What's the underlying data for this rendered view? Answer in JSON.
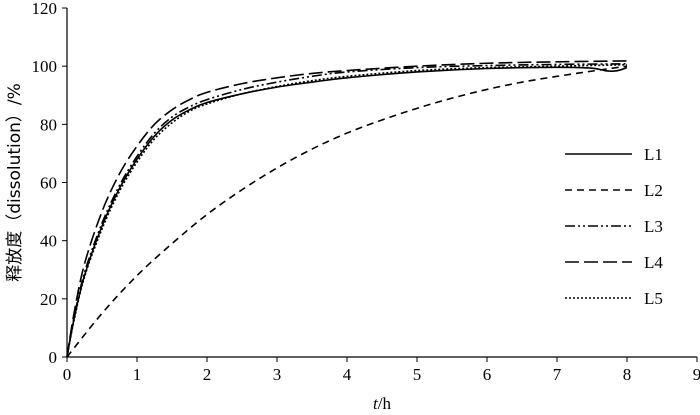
{
  "chart_data": {
    "type": "line",
    "title": "",
    "xlabel": {
      "italic": "t",
      "rest": "/h"
    },
    "ylabel": "释放度（dissolution）/%",
    "xlim": [
      0,
      9
    ],
    "ylim": [
      0,
      120
    ],
    "xticks": [
      0,
      1,
      2,
      3,
      4,
      5,
      6,
      7,
      8,
      9
    ],
    "yticks": [
      0,
      20,
      40,
      60,
      80,
      100,
      120
    ],
    "grid": false,
    "legend_position": "right",
    "series": [
      {
        "name": "L1",
        "style": "solid",
        "x": [
          0,
          0.1,
          0.25,
          0.5,
          0.75,
          1,
          1.25,
          1.5,
          1.75,
          2,
          2.5,
          3,
          3.5,
          4,
          5,
          6,
          7,
          7.5,
          7.7,
          7.85,
          8
        ],
        "y": [
          0,
          13,
          28,
          45,
          58,
          68,
          76,
          81.5,
          85,
          87.5,
          90.5,
          92.8,
          94.5,
          96,
          98,
          99.2,
          99.6,
          99.3,
          98.4,
          98.4,
          99.5
        ]
      },
      {
        "name": "L2",
        "style": "dashed",
        "x": [
          0,
          0.5,
          1,
          1.5,
          2,
          2.5,
          3,
          3.5,
          4,
          4.5,
          5,
          5.5,
          6,
          6.5,
          7,
          7.5,
          8
        ],
        "y": [
          0,
          15,
          28,
          39,
          49,
          57.5,
          65,
          71.5,
          77,
          81.5,
          85.5,
          89,
          92,
          94.5,
          96.5,
          98.3,
          100
        ]
      },
      {
        "name": "L3",
        "style": "dash-dot-dot",
        "x": [
          0,
          0.1,
          0.25,
          0.5,
          0.75,
          1,
          1.25,
          1.5,
          1.75,
          2,
          2.5,
          3,
          3.5,
          4,
          5,
          6,
          7,
          8
        ],
        "y": [
          0,
          13.5,
          29,
          46,
          59,
          69,
          77,
          82.5,
          86,
          88.5,
          92,
          94.5,
          96.5,
          98,
          99.5,
          100.2,
          100.6,
          100.8
        ]
      },
      {
        "name": "L4",
        "style": "long-dash",
        "x": [
          0,
          0.1,
          0.25,
          0.5,
          0.75,
          1,
          1.25,
          1.5,
          1.75,
          2,
          2.5,
          3,
          3.5,
          4,
          5,
          6,
          7,
          8
        ],
        "y": [
          0,
          15,
          32,
          50,
          63,
          72.5,
          80,
          85,
          88.5,
          91,
          94,
          96,
          97.5,
          98.5,
          100,
          101,
          101.5,
          101.8
        ]
      },
      {
        "name": "L5",
        "style": "dotted",
        "x": [
          0,
          0.1,
          0.25,
          0.5,
          0.75,
          1,
          1.25,
          1.5,
          1.75,
          2,
          2.5,
          3,
          3.5,
          4,
          5,
          6,
          7,
          8
        ],
        "y": [
          0,
          12.5,
          27.5,
          44,
          57,
          67,
          75,
          80.5,
          84.5,
          87,
          90.5,
          93,
          95,
          96.5,
          98.5,
          99.5,
          100,
          100.5
        ]
      }
    ]
  }
}
